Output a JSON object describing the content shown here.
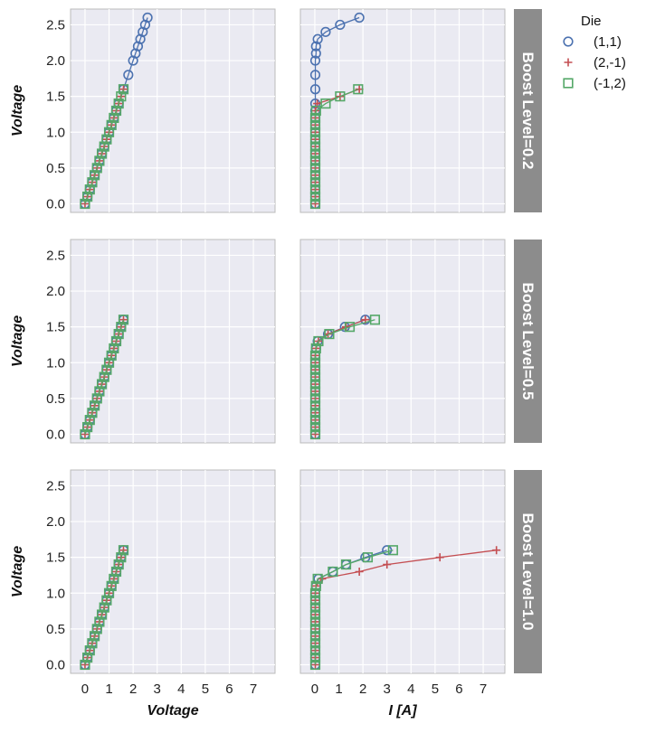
{
  "chart_data": {
    "type": "scatter",
    "facet_label_prefix": "Boost Level=",
    "facets": [
      "0.2",
      "0.5",
      "1.0"
    ],
    "columns": [
      {
        "xlabel": "Voltage",
        "x_field": "voltage"
      },
      {
        "xlabel": "I [A]",
        "x_field": "current"
      }
    ],
    "ylabel": "Voltage",
    "xlim": [
      -0.6,
      7.9
    ],
    "ylim": [
      -0.12,
      2.72
    ],
    "xticks": [
      0,
      1,
      2,
      3,
      4,
      5,
      6,
      7
    ],
    "yticks": [
      0.0,
      0.5,
      1.0,
      1.5,
      2.0,
      2.5
    ],
    "ytick_labels": [
      "0.0",
      "0.5",
      "1.0",
      "1.5",
      "2.0",
      "2.5"
    ],
    "grid": true,
    "legend": {
      "title": "Die",
      "placement": "right",
      "entries": [
        {
          "name": "(1,1)",
          "marker": "circle",
          "color": "#4C72B0"
        },
        {
          "name": "(2,-1)",
          "marker": "plus",
          "color": "#C44E52"
        },
        {
          "name": "(-1,2)",
          "marker": "square",
          "color": "#55A868"
        }
      ]
    },
    "series": [
      {
        "facet": "0.2",
        "name": "(1,1)",
        "voltage": [
          0,
          0.1,
          0.2,
          0.3,
          0.4,
          0.5,
          0.6,
          0.7,
          0.8,
          0.9,
          1.0,
          1.1,
          1.2,
          1.3,
          1.4,
          1.6,
          1.8,
          2.0,
          2.1,
          2.2,
          2.3,
          2.4,
          2.5,
          2.6
        ],
        "current": [
          0.02,
          0.02,
          0.02,
          0.02,
          0.02,
          0.02,
          0.02,
          0.02,
          0.02,
          0.02,
          0.02,
          0.02,
          0.02,
          0.02,
          0.02,
          0.02,
          0.02,
          0.02,
          0.05,
          0.05,
          0.12,
          0.45,
          1.05,
          1.85
        ]
      },
      {
        "facet": "0.2",
        "name": "(2,-1)",
        "voltage": [
          0,
          0.1,
          0.2,
          0.3,
          0.4,
          0.5,
          0.6,
          0.7,
          0.8,
          0.9,
          1.0,
          1.1,
          1.2,
          1.3,
          1.4,
          1.5,
          1.6
        ],
        "current": [
          0.02,
          0.02,
          0.02,
          0.02,
          0.02,
          0.02,
          0.02,
          0.02,
          0.02,
          0.02,
          0.02,
          0.02,
          0.02,
          0.02,
          0.1,
          1.05,
          1.85
        ]
      },
      {
        "facet": "0.2",
        "name": "(-1,2)",
        "voltage": [
          0,
          0.1,
          0.2,
          0.3,
          0.4,
          0.5,
          0.6,
          0.7,
          0.8,
          0.9,
          1.0,
          1.1,
          1.2,
          1.3,
          1.4,
          1.5,
          1.6
        ],
        "current": [
          0.02,
          0.02,
          0.02,
          0.02,
          0.02,
          0.02,
          0.02,
          0.02,
          0.02,
          0.02,
          0.02,
          0.02,
          0.02,
          0.05,
          0.45,
          1.05,
          1.8
        ]
      },
      {
        "facet": "0.5",
        "name": "(1,1)",
        "voltage": [
          0,
          0.1,
          0.2,
          0.3,
          0.4,
          0.5,
          0.6,
          0.7,
          0.8,
          0.9,
          1.0,
          1.1,
          1.2,
          1.3,
          1.4,
          1.5,
          1.6
        ],
        "current": [
          0.02,
          0.02,
          0.02,
          0.02,
          0.02,
          0.02,
          0.02,
          0.02,
          0.02,
          0.02,
          0.02,
          0.02,
          0.05,
          0.12,
          0.55,
          1.25,
          2.1
        ]
      },
      {
        "facet": "0.5",
        "name": "(2,-1)",
        "voltage": [
          0,
          0.1,
          0.2,
          0.3,
          0.4,
          0.5,
          0.6,
          0.7,
          0.8,
          0.9,
          1.0,
          1.1,
          1.2,
          1.3,
          1.4,
          1.5,
          1.6
        ],
        "current": [
          0.02,
          0.02,
          0.02,
          0.02,
          0.02,
          0.02,
          0.02,
          0.02,
          0.02,
          0.02,
          0.02,
          0.02,
          0.05,
          0.15,
          0.55,
          1.3,
          2.1
        ]
      },
      {
        "facet": "0.5",
        "name": "(-1,2)",
        "voltage": [
          0,
          0.1,
          0.2,
          0.3,
          0.4,
          0.5,
          0.6,
          0.7,
          0.8,
          0.9,
          1.0,
          1.1,
          1.2,
          1.3,
          1.4,
          1.5,
          1.6
        ],
        "current": [
          0.02,
          0.02,
          0.02,
          0.02,
          0.02,
          0.02,
          0.02,
          0.02,
          0.02,
          0.02,
          0.02,
          0.02,
          0.05,
          0.15,
          0.6,
          1.45,
          2.5
        ]
      },
      {
        "facet": "1.0",
        "name": "(1,1)",
        "voltage": [
          0,
          0.1,
          0.2,
          0.3,
          0.4,
          0.5,
          0.6,
          0.7,
          0.8,
          0.9,
          1.0,
          1.1,
          1.2,
          1.3,
          1.4,
          1.5,
          1.6
        ],
        "current": [
          0.02,
          0.02,
          0.02,
          0.02,
          0.02,
          0.02,
          0.02,
          0.02,
          0.02,
          0.02,
          0.02,
          0.05,
          0.15,
          0.75,
          1.3,
          2.1,
          3.0
        ]
      },
      {
        "facet": "1.0",
        "name": "(2,-1)",
        "voltage": [
          0,
          0.1,
          0.2,
          0.3,
          0.4,
          0.5,
          0.6,
          0.7,
          0.8,
          0.9,
          1.0,
          1.1,
          1.2,
          1.3,
          1.4,
          1.5,
          1.6
        ],
        "current": [
          0.02,
          0.02,
          0.02,
          0.02,
          0.02,
          0.02,
          0.02,
          0.02,
          0.02,
          0.02,
          0.02,
          0.05,
          0.3,
          1.85,
          3.0,
          5.2,
          7.55
        ]
      },
      {
        "facet": "1.0",
        "name": "(-1,2)",
        "voltage": [
          0,
          0.1,
          0.2,
          0.3,
          0.4,
          0.5,
          0.6,
          0.7,
          0.8,
          0.9,
          1.0,
          1.1,
          1.2,
          1.3,
          1.4,
          1.5,
          1.6
        ],
        "current": [
          0.02,
          0.02,
          0.02,
          0.02,
          0.02,
          0.02,
          0.02,
          0.02,
          0.02,
          0.02,
          0.02,
          0.05,
          0.12,
          0.75,
          1.3,
          2.2,
          3.25
        ]
      }
    ]
  }
}
